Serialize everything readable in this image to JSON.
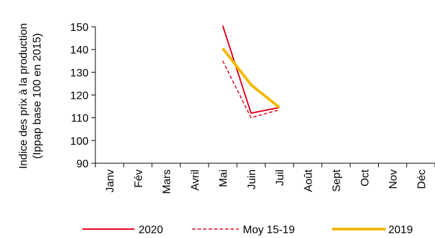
{
  "chart_data": {
    "type": "line",
    "ylabel_line1": "Indice des prix à la production",
    "ylabel_line2": "(Ippap base 100 en 2015)",
    "categories": [
      "Janv",
      "Fév",
      "Mars",
      "Avril",
      "Mai",
      "Juin",
      "Juil",
      "Août",
      "Sept",
      "Oct",
      "Nov",
      "Déc"
    ],
    "ylim": [
      90,
      150
    ],
    "yticks": [
      90,
      100,
      110,
      120,
      130,
      140,
      150
    ],
    "grid": false,
    "legend_position": "bottom",
    "series": [
      {
        "name": "2020",
        "color": "#e3001b",
        "style": "solid",
        "width": 2,
        "values": [
          null,
          null,
          null,
          null,
          150.5,
          112,
          114.5,
          null,
          null,
          null,
          null,
          null
        ]
      },
      {
        "name": "Moy 15-19",
        "color": "#e3001b",
        "style": "dashed",
        "width": 1.5,
        "values": [
          null,
          null,
          null,
          null,
          135,
          110,
          113.5,
          null,
          null,
          null,
          null,
          null
        ]
      },
      {
        "name": "2019",
        "color": "#f5b800",
        "style": "solid",
        "width": 4,
        "values": [
          null,
          null,
          null,
          null,
          140.5,
          124.5,
          114.5,
          null,
          null,
          null,
          null,
          null
        ]
      }
    ]
  }
}
